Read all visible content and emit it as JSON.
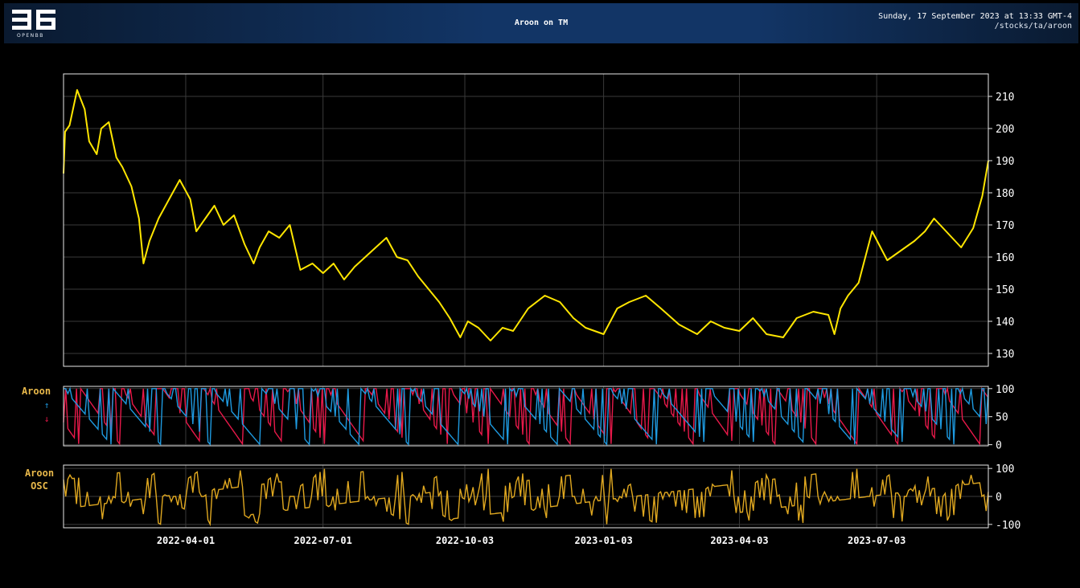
{
  "header": {
    "logo_text": "OPENBB",
    "title": "Aroon on TM",
    "datetime": "Sunday, 17 September 2023 at 13:33 GMT-4",
    "command": "/stocks/ta/aroon"
  },
  "colors": {
    "background": "#000000",
    "grid": "#3a3a3a",
    "frame": "#e8e8e8",
    "price": "#ffe600",
    "aroon_up": "#1e9ae0",
    "aroon_down": "#e8194a",
    "osc": "#e0a820",
    "label": "#e8b84a"
  },
  "chart_data": {
    "type": "line",
    "x_range": [
      "2022-01-10",
      "2023-09-15"
    ],
    "x_ticks": [
      "2022-04-01",
      "2022-07-01",
      "2022-10-03",
      "2023-01-03",
      "2023-04-03",
      "2023-07-03"
    ],
    "price": {
      "ylim": [
        126,
        217
      ],
      "yticks": [
        130,
        140,
        150,
        160,
        170,
        180,
        190,
        200,
        210
      ],
      "x": [
        "2022-01-10",
        "2022-01-11",
        "2022-01-14",
        "2022-01-19",
        "2022-01-24",
        "2022-01-27",
        "2022-02-01",
        "2022-02-04",
        "2022-02-09",
        "2022-02-14",
        "2022-02-18",
        "2022-02-24",
        "2022-03-01",
        "2022-03-04",
        "2022-03-08",
        "2022-03-14",
        "2022-03-21",
        "2022-03-28",
        "2022-04-04",
        "2022-04-08",
        "2022-04-14",
        "2022-04-20",
        "2022-04-26",
        "2022-05-03",
        "2022-05-10",
        "2022-05-16",
        "2022-05-20",
        "2022-05-26",
        "2022-06-02",
        "2022-06-09",
        "2022-06-16",
        "2022-06-24",
        "2022-07-01",
        "2022-07-08",
        "2022-07-15",
        "2022-07-22",
        "2022-07-29",
        "2022-08-05",
        "2022-08-12",
        "2022-08-19",
        "2022-08-26",
        "2022-09-02",
        "2022-09-09",
        "2022-09-16",
        "2022-09-23",
        "2022-09-30",
        "2022-10-05",
        "2022-10-12",
        "2022-10-20",
        "2022-10-28",
        "2022-11-04",
        "2022-11-14",
        "2022-11-25",
        "2022-12-05",
        "2022-12-14",
        "2022-12-22",
        "2023-01-03",
        "2023-01-12",
        "2023-01-20",
        "2023-01-31",
        "2023-02-10",
        "2023-02-22",
        "2023-03-06",
        "2023-03-15",
        "2023-03-24",
        "2023-04-03",
        "2023-04-12",
        "2023-04-21",
        "2023-05-02",
        "2023-05-11",
        "2023-05-22",
        "2023-06-01",
        "2023-06-05",
        "2023-06-09",
        "2023-06-14",
        "2023-06-21",
        "2023-06-30",
        "2023-07-10",
        "2023-07-19",
        "2023-07-28",
        "2023-08-04",
        "2023-08-10",
        "2023-08-18",
        "2023-08-28",
        "2023-09-05",
        "2023-09-11",
        "2023-09-15"
      ],
      "values": [
        186,
        199,
        201,
        212,
        206,
        196,
        192,
        200,
        202,
        191,
        188,
        182,
        172,
        158,
        165,
        172,
        178,
        184,
        178,
        168,
        172,
        176,
        170,
        173,
        164,
        158,
        163,
        168,
        166,
        170,
        156,
        158,
        155,
        158,
        153,
        157,
        160,
        163,
        166,
        160,
        159,
        154,
        150,
        146,
        141,
        135,
        140,
        138,
        134,
        138,
        137,
        144,
        148,
        146,
        141,
        138,
        136,
        144,
        146,
        148,
        144,
        139,
        136,
        140,
        138,
        137,
        141,
        136,
        135,
        141,
        143,
        142,
        136,
        144,
        148,
        152,
        168,
        159,
        162,
        165,
        168,
        172,
        168,
        163,
        169,
        179,
        190
      ]
    },
    "aroon": {
      "label": "Aroon",
      "up_symbol": "↑",
      "down_symbol": "↓",
      "ylim": [
        -2,
        104
      ],
      "yticks": [
        0,
        50,
        100
      ]
    },
    "oscillator": {
      "label_line1": "Aroon",
      "label_line2": "OSC",
      "ylim": [
        -112,
        112
      ],
      "yticks": [
        -100,
        0,
        100
      ]
    }
  }
}
